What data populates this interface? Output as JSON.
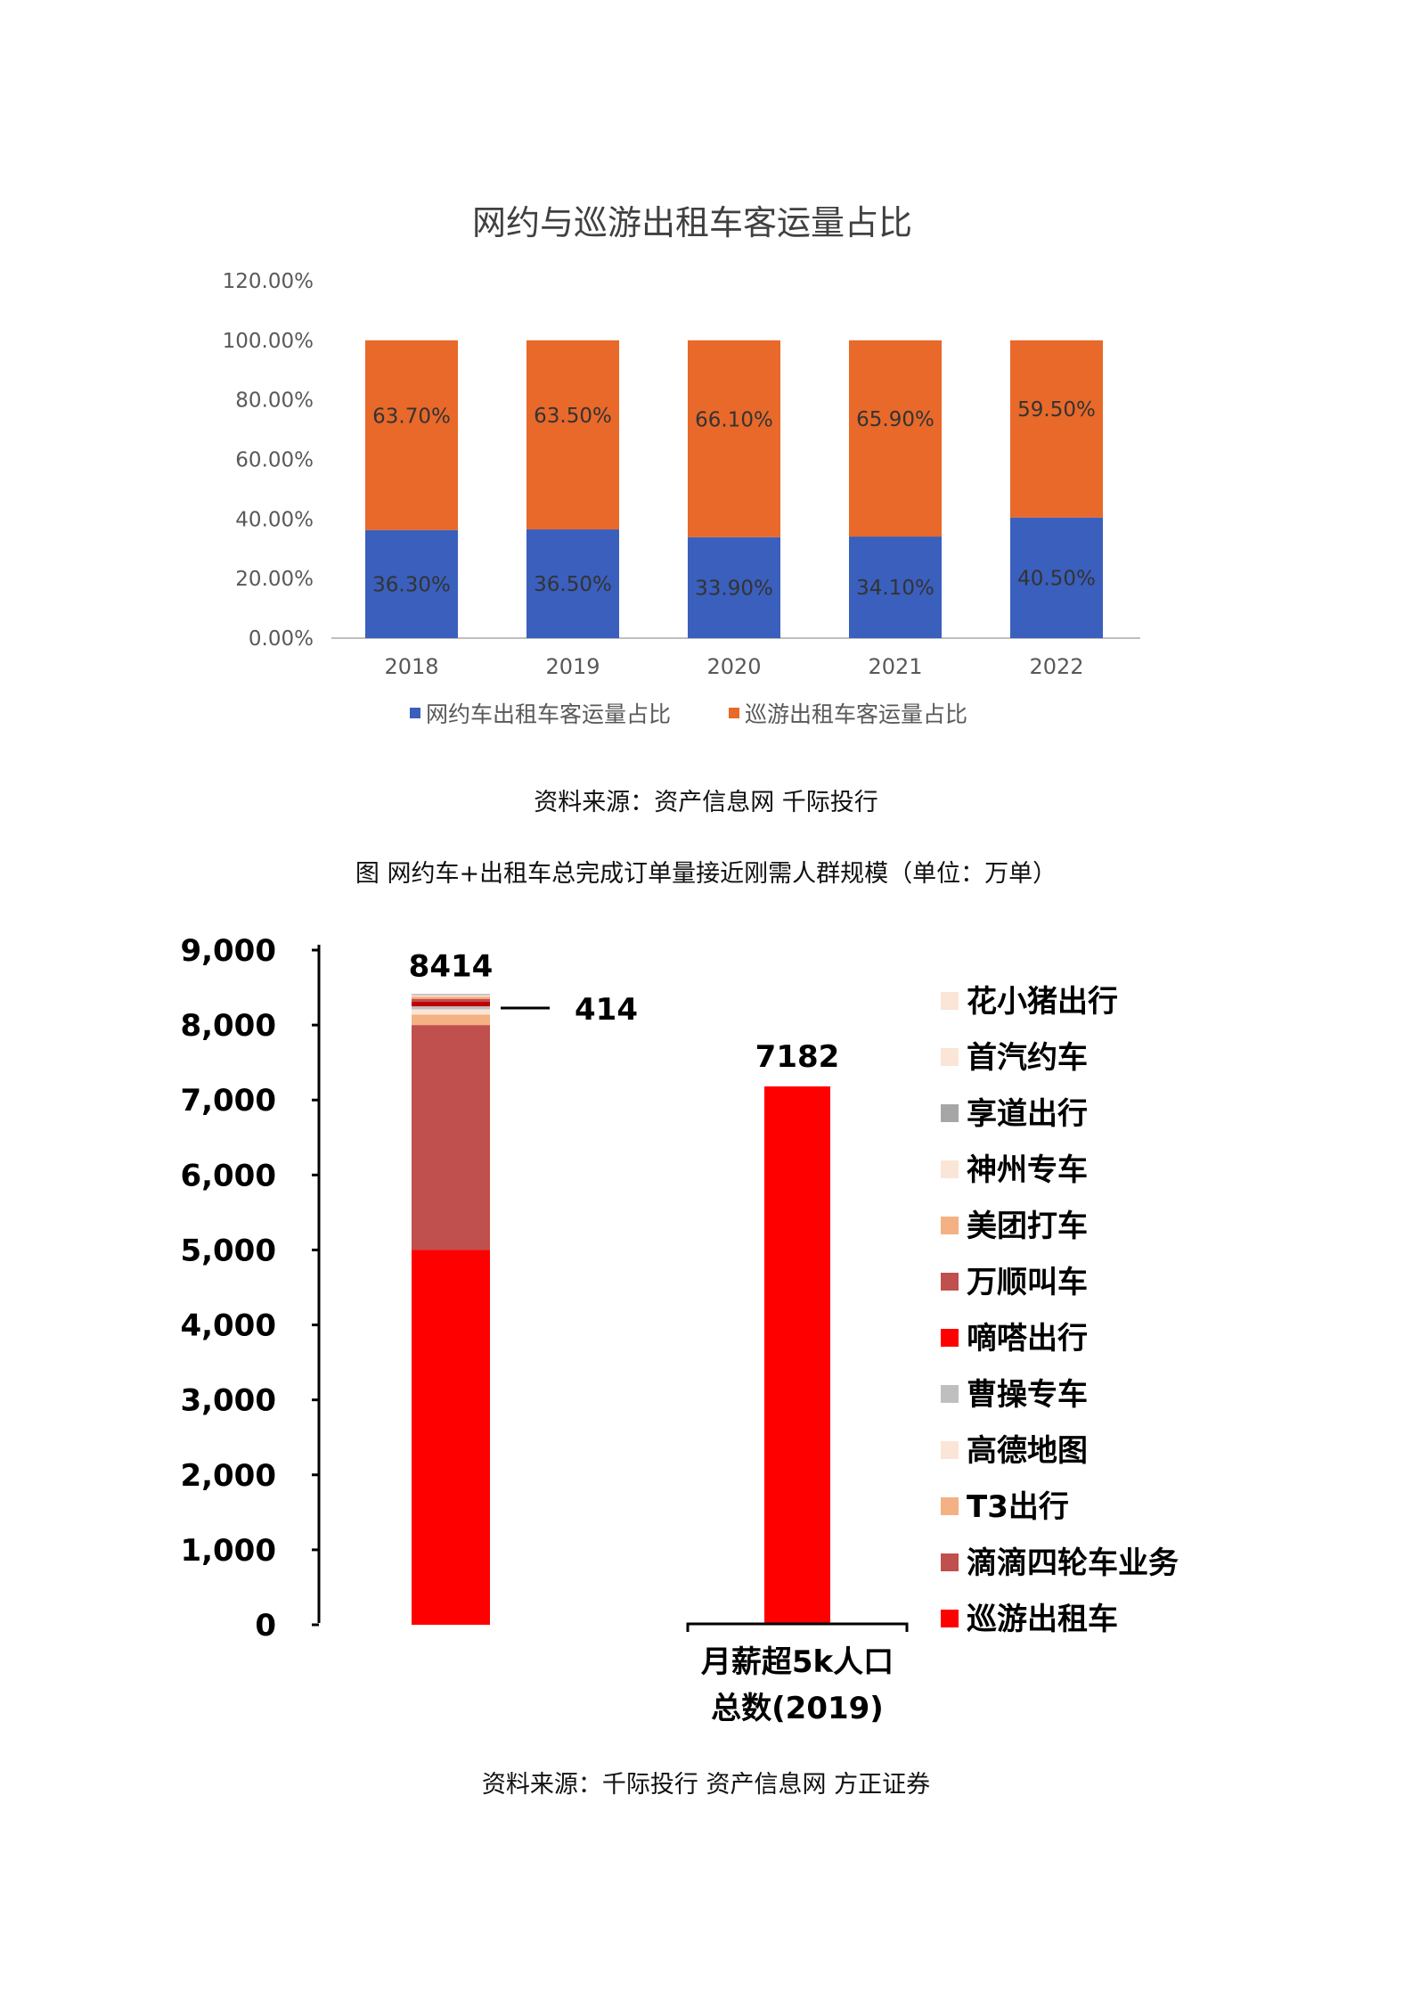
{
  "chart_data": [
    {
      "type": "bar",
      "stacked": true,
      "title": "网约与巡游出租车客运量占比",
      "categories": [
        "2018",
        "2019",
        "2020",
        "2021",
        "2022"
      ],
      "series": [
        {
          "name": "网约车出租车客运量占比",
          "color": "#3a5fbd",
          "values": [
            36.3,
            36.5,
            33.9,
            34.1,
            40.5
          ],
          "labels": [
            "36.30%",
            "36.50%",
            "33.90%",
            "34.10%",
            "40.50%"
          ]
        },
        {
          "name": "巡游出租车客运量占比",
          "color": "#e8692a",
          "values": [
            63.7,
            63.5,
            66.1,
            65.9,
            59.5
          ],
          "labels": [
            "63.70%",
            "63.50%",
            "66.10%",
            "65.90%",
            "59.50%"
          ]
        }
      ],
      "yticks": [
        "0.00%",
        "20.00%",
        "40.00%",
        "60.00%",
        "80.00%",
        "100.00%",
        "120.00%"
      ],
      "ylim": [
        0,
        120
      ],
      "grid": false,
      "legend": "bottom"
    },
    {
      "type": "bar",
      "stacked": true,
      "title": "",
      "categories": [
        "",
        "月薪超5k人口总数(2019)"
      ],
      "category_label_lines": [
        "月薪超5k人口",
        "总数(2019)"
      ],
      "yticks": [
        "0",
        "1,000",
        "2,000",
        "3,000",
        "4,000",
        "5,000",
        "6,000",
        "7,000",
        "8,000",
        "9,000"
      ],
      "ylim": [
        0,
        9000
      ],
      "totals": [
        "8414",
        "7182"
      ],
      "annotation": "414",
      "stack": [
        {
          "name": "滴滴四轮车业务",
          "value": 5000,
          "color": "#ff0000"
        },
        {
          "name": "滴滴四轮车业务",
          "value": 3000,
          "color": "#c0504d"
        },
        {
          "name": "T3出行",
          "value": 140,
          "color": "#f4b183"
        },
        {
          "name": "高德地图",
          "value": 70,
          "color": "#fbe5d6"
        },
        {
          "name": "曹操专车",
          "value": 40,
          "color": "#bfbfbf"
        },
        {
          "name": "嘀嗒出行",
          "value": 60,
          "color": "#c00000"
        },
        {
          "name": "万顺叫车",
          "value": 40,
          "color": "#c0504d"
        },
        {
          "name": "美团打车",
          "value": 30,
          "color": "#f4b183"
        },
        {
          "name": "神州专车",
          "value": 20,
          "color": "#fbe5d6"
        },
        {
          "name": "享道出行",
          "value": 14,
          "color": "#a6a6a6"
        }
      ],
      "second_bar": {
        "value": 7182,
        "color": "#ff0000"
      },
      "legend": [
        {
          "label": "花小猪出行",
          "color": "#fbe5d6"
        },
        {
          "label": "首汽约车",
          "color": "#fbe5d6"
        },
        {
          "label": "享道出行",
          "color": "#a6a6a6"
        },
        {
          "label": "神州专车",
          "color": "#fbe5d6"
        },
        {
          "label": "美团打车",
          "color": "#f4b183"
        },
        {
          "label": "万顺叫车",
          "color": "#c0504d"
        },
        {
          "label": "嘀嗒出行",
          "color": "#ff0000"
        },
        {
          "label": "曹操专车",
          "color": "#bfbfbf"
        },
        {
          "label": "高德地图",
          "color": "#fbe5d6"
        },
        {
          "label": "T3出行",
          "color": "#f4b183"
        },
        {
          "label": "滴滴四轮车业务",
          "color": "#c0504d"
        },
        {
          "label": "巡游出租车",
          "color": "#ff0000"
        }
      ],
      "legend_position": "right"
    }
  ],
  "captions": {
    "source1": "资料来源：资产信息网 千际投行",
    "figure2_title": "图 网约车+出租车总完成订单量接近刚需人群规模（单位：万单）",
    "source2": "资料来源：千际投行 资产信息网 方正证券"
  }
}
